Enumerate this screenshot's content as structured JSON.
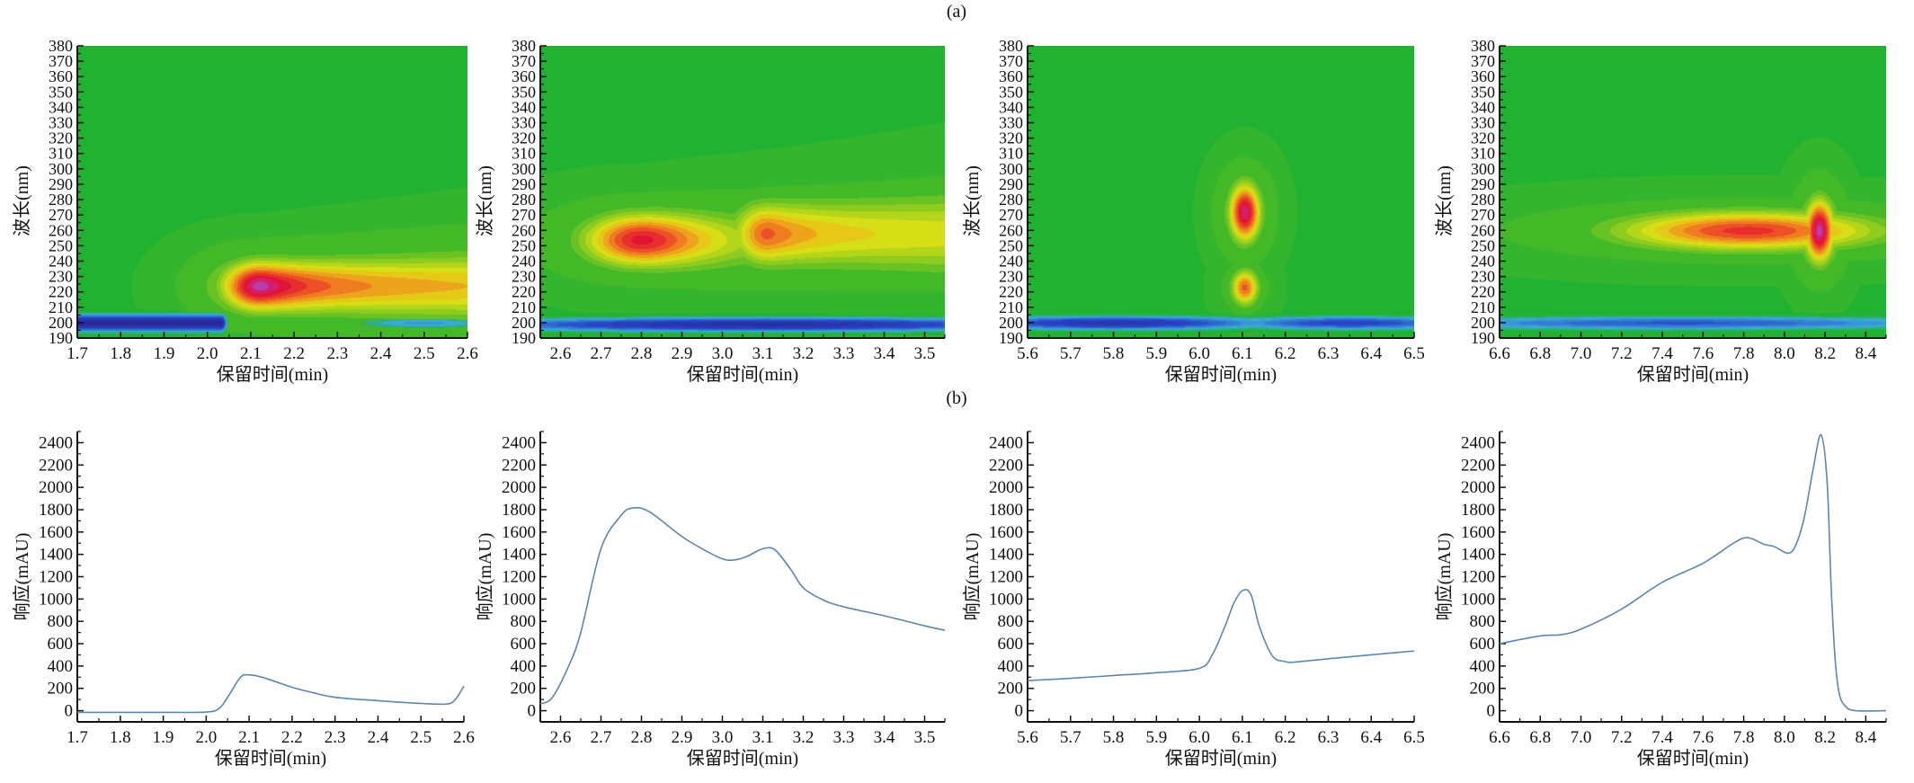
{
  "figure": {
    "label_a": "(a)",
    "label_b": "(b)"
  },
  "colors": {
    "background_green": "#22b232",
    "line": "#5b86b0",
    "axis": "#111111"
  },
  "chart_data": [
    {
      "id": "a1",
      "type": "heatmap",
      "title": "",
      "xlabel": "保留时间(min)",
      "ylabel": "波长(nm)",
      "xlim": [
        1.7,
        2.6
      ],
      "ylim": [
        190,
        380
      ],
      "xticks": [
        "1.7",
        "1.8",
        "1.9",
        "2.0",
        "2.1",
        "2.2",
        "2.3",
        "2.4",
        "2.5",
        "2.6"
      ],
      "yticks": [
        "190",
        "200",
        "210",
        "220",
        "230",
        "240",
        "250",
        "260",
        "270",
        "280",
        "290",
        "300",
        "310",
        "320",
        "330",
        "340",
        "350",
        "360",
        "370",
        "380"
      ],
      "features": [
        {
          "kind": "hot",
          "x": 2.12,
          "y": 224,
          "sx": 0.06,
          "sy": 11,
          "tail": 0.35,
          "intensity": 1.0
        },
        {
          "kind": "cold",
          "x": 1.85,
          "y": 200,
          "sx": 0.2,
          "sy": 3.5,
          "x_end": 2.03,
          "intensity": 1.0
        },
        {
          "kind": "cold",
          "x": 2.5,
          "y": 200,
          "sx": 0.12,
          "sy": 2.5,
          "intensity": 0.35
        }
      ]
    },
    {
      "id": "a2",
      "type": "heatmap",
      "title": "",
      "xlabel": "保留时间(min)",
      "ylabel": "波长(nm)",
      "xlim": [
        2.55,
        3.55
      ],
      "ylim": [
        190,
        380
      ],
      "xticks": [
        "2.6",
        "2.7",
        "2.8",
        "2.9",
        "3.0",
        "3.1",
        "3.2",
        "3.3",
        "3.4",
        "3.5"
      ],
      "yticks": [
        "190",
        "200",
        "210",
        "220",
        "230",
        "240",
        "250",
        "260",
        "270",
        "280",
        "290",
        "300",
        "310",
        "320",
        "330",
        "340",
        "350",
        "360",
        "370",
        "380"
      ],
      "features": [
        {
          "kind": "hot",
          "x": 2.8,
          "y": 254,
          "sx": 0.1,
          "sy": 12,
          "tail": 0.15,
          "intensity": 0.85
        },
        {
          "kind": "hot",
          "x": 3.11,
          "y": 258,
          "sx": 0.06,
          "sy": 14,
          "tail": 0.4,
          "intensity": 0.7
        },
        {
          "kind": "cold",
          "x": 3.1,
          "y": 199,
          "sx": 0.5,
          "sy": 3,
          "intensity": 0.9
        }
      ]
    },
    {
      "id": "a3",
      "type": "heatmap",
      "title": "",
      "xlabel": "保留时间(min)",
      "ylabel": "波长(nm)",
      "xlim": [
        5.6,
        6.5
      ],
      "ylim": [
        190,
        380
      ],
      "xticks": [
        "5.6",
        "5.7",
        "5.8",
        "5.9",
        "6.0",
        "6.1",
        "6.2",
        "6.3",
        "6.4",
        "6.5"
      ],
      "yticks": [
        "190",
        "200",
        "210",
        "220",
        "230",
        "240",
        "250",
        "260",
        "270",
        "280",
        "290",
        "300",
        "310",
        "320",
        "330",
        "340",
        "350",
        "360",
        "370",
        "380"
      ],
      "features": [
        {
          "kind": "hot",
          "x": 6.105,
          "y": 272,
          "sx": 0.025,
          "sy": 13,
          "tail": 0,
          "intensity": 0.95
        },
        {
          "kind": "hot",
          "x": 6.105,
          "y": 223,
          "sx": 0.022,
          "sy": 8,
          "tail": 0,
          "intensity": 0.7
        },
        {
          "kind": "cold",
          "x": 5.8,
          "y": 200,
          "sx": 0.25,
          "sy": 3,
          "intensity": 0.8
        },
        {
          "kind": "cold",
          "x": 6.35,
          "y": 200,
          "sx": 0.2,
          "sy": 3,
          "intensity": 0.65
        }
      ]
    },
    {
      "id": "a4",
      "type": "heatmap",
      "title": "",
      "xlabel": "保留时间(min)",
      "ylabel": "波长(nm)",
      "xlim": [
        6.6,
        8.5
      ],
      "ylim": [
        190,
        380
      ],
      "xticks": [
        "6.6",
        "6.8",
        "7.0",
        "7.2",
        "7.4",
        "7.6",
        "7.8",
        "8.0",
        "8.2",
        "8.4"
      ],
      "yticks": [
        "190",
        "200",
        "210",
        "220",
        "230",
        "240",
        "250",
        "260",
        "270",
        "280",
        "290",
        "300",
        "310",
        "320",
        "330",
        "340",
        "350",
        "360",
        "370",
        "380"
      ],
      "features": [
        {
          "kind": "hot",
          "x": 8.17,
          "y": 260,
          "sx": 0.05,
          "sy": 14,
          "tail": 0,
          "intensity": 1.0
        },
        {
          "kind": "hot",
          "x": 7.82,
          "y": 260,
          "sx": 0.45,
          "sy": 9,
          "tail": 0,
          "intensity": 0.78
        },
        {
          "kind": "cold",
          "x": 7.5,
          "y": 200,
          "sx": 1.0,
          "sy": 3,
          "intensity": 0.55
        }
      ]
    },
    {
      "id": "b1",
      "type": "line",
      "xlabel": "保留时间(min)",
      "ylabel": "响应(mAU)",
      "xlim": [
        1.7,
        2.6
      ],
      "ylim": [
        -100,
        2500
      ],
      "xticks": [
        "1.7",
        "1.8",
        "1.9",
        "2.0",
        "2.1",
        "2.2",
        "2.3",
        "2.4",
        "2.5",
        "2.6"
      ],
      "yticks": [
        "0",
        "200",
        "400",
        "600",
        "800",
        "1000",
        "1200",
        "1400",
        "1600",
        "1800",
        "2000",
        "2200",
        "2400"
      ],
      "x": [
        1.7,
        1.8,
        1.9,
        2.0,
        2.03,
        2.05,
        2.08,
        2.1,
        2.13,
        2.2,
        2.25,
        2.3,
        2.4,
        2.5,
        2.56,
        2.58,
        2.6
      ],
      "y": [
        -15,
        -15,
        -15,
        -12,
        20,
        120,
        300,
        320,
        300,
        210,
        160,
        120,
        90,
        65,
        60,
        100,
        220
      ]
    },
    {
      "id": "b2",
      "type": "line",
      "xlabel": "保留时间(min)",
      "ylabel": "响应(mAU)",
      "xlim": [
        2.55,
        3.55
      ],
      "ylim": [
        -100,
        2500
      ],
      "xticks": [
        "2.6",
        "2.7",
        "2.8",
        "2.9",
        "3.0",
        "3.1",
        "3.2",
        "3.3",
        "3.4",
        "3.5"
      ],
      "yticks": [
        "0",
        "200",
        "400",
        "600",
        "800",
        "1000",
        "1200",
        "1400",
        "1600",
        "1800",
        "2000",
        "2200",
        "2400"
      ],
      "x": [
        2.55,
        2.58,
        2.62,
        2.65,
        2.7,
        2.75,
        2.78,
        2.82,
        2.9,
        2.95,
        3.0,
        3.03,
        3.06,
        3.1,
        3.13,
        3.17,
        3.2,
        3.25,
        3.3,
        3.4,
        3.5,
        3.55
      ],
      "y": [
        60,
        120,
        400,
        700,
        1450,
        1750,
        1815,
        1780,
        1560,
        1450,
        1360,
        1350,
        1380,
        1450,
        1440,
        1260,
        1100,
        990,
        930,
        850,
        760,
        720
      ]
    },
    {
      "id": "b3",
      "type": "line",
      "xlabel": "保留时间(min)",
      "ylabel": "响应(mAU)",
      "xlim": [
        5.6,
        6.5
      ],
      "ylim": [
        -100,
        2500
      ],
      "xticks": [
        "5.6",
        "5.7",
        "5.8",
        "5.9",
        "6.0",
        "6.1",
        "6.2",
        "6.3",
        "6.4",
        "6.5"
      ],
      "yticks": [
        "0",
        "200",
        "400",
        "600",
        "800",
        "1000",
        "1200",
        "1400",
        "1600",
        "1800",
        "2000",
        "2200",
        "2400"
      ],
      "x": [
        5.6,
        5.7,
        5.8,
        5.9,
        6.0,
        6.03,
        6.06,
        6.08,
        6.1,
        6.12,
        6.14,
        6.17,
        6.2,
        6.22,
        6.3,
        6.4,
        6.5
      ],
      "y": [
        270,
        290,
        315,
        340,
        380,
        500,
        760,
        960,
        1075,
        1040,
        750,
        490,
        440,
        435,
        465,
        500,
        535
      ]
    },
    {
      "id": "b4",
      "type": "line",
      "xlabel": "保留时间(min)",
      "ylabel": "响应(mAU)",
      "xlim": [
        6.6,
        8.5
      ],
      "ylim": [
        -100,
        2500
      ],
      "xticks": [
        "6.6",
        "6.8",
        "7.0",
        "7.2",
        "7.4",
        "7.6",
        "7.8",
        "8.0",
        "8.2",
        "8.4"
      ],
      "yticks": [
        "0",
        "200",
        "400",
        "600",
        "800",
        "1000",
        "1200",
        "1400",
        "1600",
        "1800",
        "2000",
        "2200",
        "2400"
      ],
      "x": [
        6.6,
        6.8,
        6.9,
        7.0,
        7.2,
        7.4,
        7.6,
        7.75,
        7.82,
        7.9,
        7.95,
        8.02,
        8.06,
        8.1,
        8.14,
        8.18,
        8.21,
        8.23,
        8.25,
        8.27,
        8.3,
        8.35,
        8.5
      ],
      "y": [
        600,
        670,
        680,
        730,
        910,
        1150,
        1320,
        1500,
        1550,
        1490,
        1470,
        1410,
        1500,
        1750,
        2150,
        2470,
        2050,
        1100,
        450,
        150,
        40,
        0,
        0
      ]
    }
  ]
}
